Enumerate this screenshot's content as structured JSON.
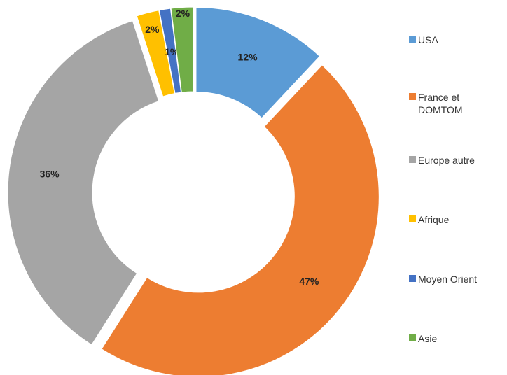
{
  "chart_data": {
    "type": "doughnut",
    "categories": [
      "USA",
      "France et DOMTOM",
      "Europe autre",
      "Afrique",
      "Moyen Orient",
      "Asie"
    ],
    "values": [
      12,
      47,
      36,
      2,
      1,
      2
    ],
    "value_labels": [
      "12%",
      "47%",
      "36%",
      "2%",
      "1%",
      "2%"
    ],
    "colors": [
      "#5b9bd5",
      "#ed7d31",
      "#a5a5a5",
      "#ffc000",
      "#4472c4",
      "#70ad47"
    ],
    "legend": "right"
  }
}
